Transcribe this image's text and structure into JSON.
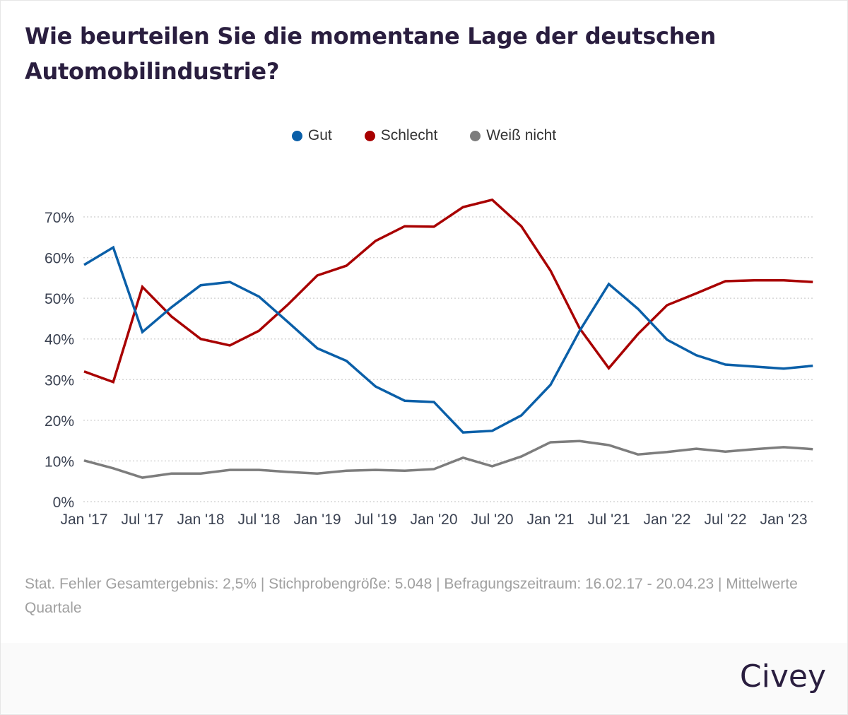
{
  "title": "Wie beurteilen Sie die momentane Lage der deutschen Automobilindustrie?",
  "note": "Stat. Fehler Gesamtergebnis: 2,5% | Stichprobengröße: 5.048 | Befragungszeitraum: 16.02.17 - 20.04.23  | Mittelwerte Quartale",
  "brand": "Civey",
  "chart_data": {
    "type": "line",
    "x": [
      "Q1 2017",
      "Q2 2017",
      "Q3 2017",
      "Q4 2017",
      "Q1 2018",
      "Q2 2018",
      "Q3 2018",
      "Q4 2018",
      "Q1 2019",
      "Q2 2019",
      "Q3 2019",
      "Q4 2019",
      "Q1 2020",
      "Q2 2020",
      "Q3 2020",
      "Q4 2020",
      "Q1 2021",
      "Q2 2021",
      "Q3 2021",
      "Q4 2021",
      "Q1 2022",
      "Q2 2022",
      "Q3 2022",
      "Q4 2022",
      "Q1 2023",
      "Q2 2023"
    ],
    "x_tick_labels": [
      "Jan '17",
      "Jul '17",
      "Jan '18",
      "Jul '18",
      "Jan '19",
      "Jul '19",
      "Jan '20",
      "Jul '20",
      "Jan '21",
      "Jul '21",
      "Jan '22",
      "Jul '22",
      "Jan '23"
    ],
    "y_tick_labels": [
      "0%",
      "10%",
      "20%",
      "30%",
      "40%",
      "50%",
      "60%",
      "70%"
    ],
    "ylim": [
      0,
      70
    ],
    "grid": true,
    "legend": "top-center",
    "series": [
      {
        "name": "Gut",
        "color": "#0a5fa8",
        "values": [
          58.2,
          62.5,
          41.7,
          47.8,
          53.2,
          54.0,
          50.4,
          44.1,
          37.7,
          34.6,
          28.3,
          24.8,
          24.5,
          17.0,
          17.4,
          21.2,
          28.7,
          42.0,
          53.5,
          47.4,
          39.8,
          36.0,
          33.7,
          33.2,
          32.7,
          33.4
        ]
      },
      {
        "name": "Schlecht",
        "color": "#a80000",
        "values": [
          32.0,
          29.4,
          52.8,
          45.5,
          40.0,
          38.4,
          42.0,
          48.5,
          55.6,
          58.0,
          64.1,
          67.7,
          67.6,
          72.4,
          74.2,
          67.7,
          56.8,
          42.6,
          32.8,
          41.2,
          48.3,
          51.2,
          54.2,
          54.4,
          54.4,
          54.0
        ]
      },
      {
        "name": "Weiß nicht",
        "color": "#7d7d7d",
        "values": [
          10.1,
          8.2,
          5.9,
          6.9,
          6.9,
          7.8,
          7.8,
          7.3,
          6.9,
          7.6,
          7.8,
          7.6,
          8.0,
          10.8,
          8.7,
          11.1,
          14.6,
          14.9,
          13.9,
          11.6,
          12.2,
          13.0,
          12.3,
          12.9,
          13.4,
          12.9
        ]
      }
    ]
  }
}
